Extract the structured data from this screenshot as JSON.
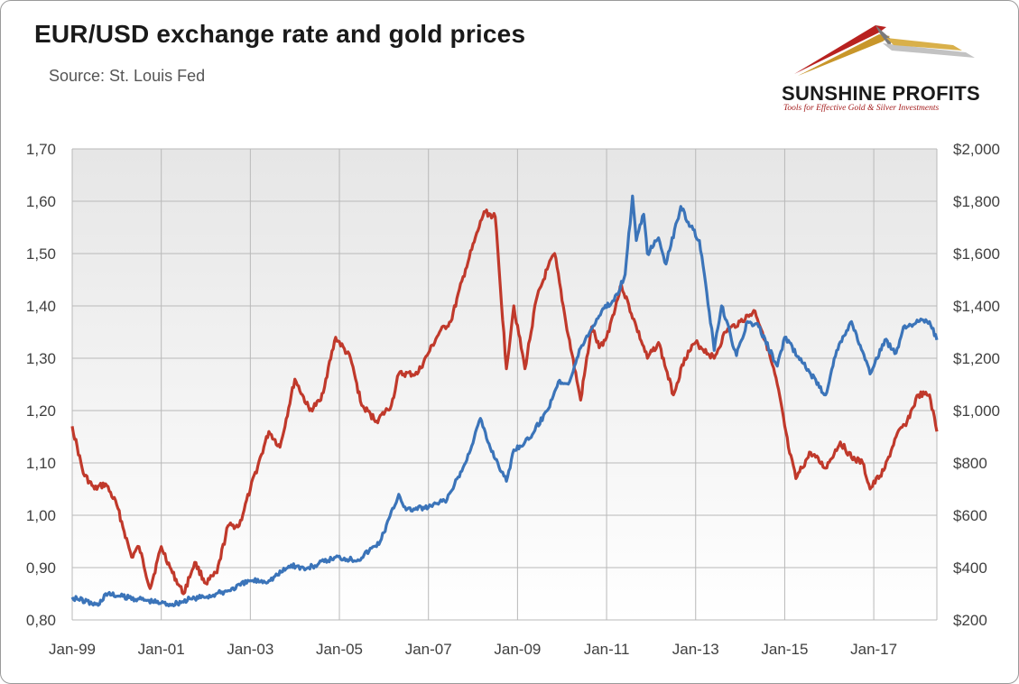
{
  "header": {
    "title": "EUR/USD exchange rate and gold prices",
    "subtitle": "Source: St. Louis Fed"
  },
  "logo": {
    "name": "SUNSHINE PROFITS",
    "tagline": "Tools for Effective Gold & Silver Investments"
  },
  "colors": {
    "eurusd": "#c0392b",
    "gold": "#3b74b9",
    "grid": "#b9b9b9",
    "plot_bg_top": "#e6e6e6",
    "plot_bg_bottom": "#ffffff"
  },
  "chart_data": {
    "type": "line",
    "title": "EUR/USD exchange rate and gold prices",
    "xlabel": "",
    "ylabel_left": "",
    "ylabel_right": "",
    "x_range": [
      "1999-01",
      "2018-06"
    ],
    "x_ticks": [
      {
        "date": "1999-01",
        "label": "Jan-99"
      },
      {
        "date": "2001-01",
        "label": "Jan-01"
      },
      {
        "date": "2003-01",
        "label": "Jan-03"
      },
      {
        "date": "2005-01",
        "label": "Jan-05"
      },
      {
        "date": "2007-01",
        "label": "Jan-07"
      },
      {
        "date": "2009-01",
        "label": "Jan-09"
      },
      {
        "date": "2011-01",
        "label": "Jan-11"
      },
      {
        "date": "2013-01",
        "label": "Jan-13"
      },
      {
        "date": "2015-01",
        "label": "Jan-15"
      },
      {
        "date": "2017-01",
        "label": "Jan-17"
      }
    ],
    "y_left": {
      "range": [
        0.8,
        1.7
      ],
      "ticks": [
        "0,80",
        "0,90",
        "1,00",
        "1,10",
        "1,20",
        "1,30",
        "1,40",
        "1,50",
        "1,60",
        "1,70"
      ]
    },
    "y_right": {
      "range": [
        200,
        2000
      ],
      "ticks": [
        "$200",
        "$400",
        "$600",
        "$800",
        "$1,000",
        "$1,200",
        "$1,400",
        "$1,600",
        "$1,800",
        "$2,000"
      ]
    },
    "grid": true,
    "legend": "none",
    "series": [
      {
        "axis": "left",
        "x": [
          "1999-01",
          "1999-04",
          "1999-07",
          "1999-10",
          "2000-01",
          "2000-05",
          "2000-07",
          "2000-10",
          "2001-01",
          "2001-04",
          "2001-07",
          "2001-10",
          "2002-01",
          "2002-04",
          "2002-07",
          "2002-10",
          "2003-01",
          "2003-06",
          "2003-09",
          "2004-01",
          "2004-05",
          "2004-08",
          "2004-12",
          "2005-04",
          "2005-07",
          "2005-11",
          "2006-03",
          "2006-05",
          "2006-10",
          "2007-01",
          "2007-04",
          "2007-07",
          "2007-11",
          "2008-04",
          "2008-07",
          "2008-10",
          "2008-12",
          "2009-03",
          "2009-06",
          "2009-09",
          "2009-11",
          "2010-02",
          "2010-06",
          "2010-09",
          "2010-11",
          "2011-01",
          "2011-05",
          "2011-09",
          "2011-12",
          "2012-03",
          "2012-07",
          "2012-10",
          "2013-01",
          "2013-06",
          "2013-09",
          "2014-01",
          "2014-05",
          "2014-08",
          "2014-11",
          "2015-02",
          "2015-04",
          "2015-08",
          "2015-12",
          "2016-04",
          "2016-07",
          "2016-10",
          "2016-12",
          "2017-04",
          "2017-07",
          "2017-10",
          "2018-01",
          "2018-04",
          "2018-06"
        ],
        "values": [
          1.17,
          1.08,
          1.05,
          1.06,
          1.02,
          0.92,
          0.94,
          0.86,
          0.94,
          0.89,
          0.85,
          0.91,
          0.87,
          0.89,
          0.98,
          0.98,
          1.05,
          1.16,
          1.13,
          1.26,
          1.2,
          1.22,
          1.34,
          1.3,
          1.21,
          1.18,
          1.21,
          1.27,
          1.27,
          1.31,
          1.35,
          1.37,
          1.47,
          1.58,
          1.57,
          1.28,
          1.4,
          1.28,
          1.41,
          1.47,
          1.5,
          1.37,
          1.22,
          1.36,
          1.32,
          1.34,
          1.44,
          1.36,
          1.3,
          1.33,
          1.23,
          1.3,
          1.33,
          1.3,
          1.35,
          1.37,
          1.39,
          1.33,
          1.25,
          1.13,
          1.07,
          1.12,
          1.09,
          1.14,
          1.11,
          1.1,
          1.05,
          1.09,
          1.15,
          1.18,
          1.23,
          1.23,
          1.16
        ]
      },
      {
        "axis": "right",
        "x": [
          "1999-01",
          "1999-08",
          "1999-10",
          "2000-02",
          "2000-07",
          "2001-01",
          "2001-04",
          "2001-09",
          "2002-03",
          "2002-07",
          "2003-01",
          "2003-06",
          "2003-12",
          "2004-04",
          "2004-12",
          "2005-06",
          "2005-12",
          "2006-05",
          "2006-07",
          "2007-01",
          "2007-06",
          "2007-11",
          "2008-03",
          "2008-05",
          "2008-10",
          "2008-12",
          "2009-04",
          "2009-09",
          "2009-12",
          "2010-03",
          "2010-06",
          "2010-12",
          "2011-03",
          "2011-06",
          "2011-08",
          "2011-09",
          "2011-11",
          "2011-12",
          "2012-03",
          "2012-05",
          "2012-09",
          "2012-11",
          "2013-02",
          "2013-04",
          "2013-06",
          "2013-08",
          "2013-12",
          "2014-03",
          "2014-06",
          "2014-11",
          "2015-01",
          "2015-06",
          "2015-12",
          "2016-03",
          "2016-07",
          "2016-12",
          "2017-04",
          "2017-07",
          "2017-09",
          "2018-01",
          "2018-04",
          "2018-06"
        ],
        "values": [
          287,
          256,
          300,
          290,
          280,
          265,
          260,
          280,
          295,
          312,
          350,
          350,
          410,
          395,
          440,
          430,
          500,
          680,
          620,
          630,
          660,
          800,
          970,
          880,
          730,
          850,
          890,
          1000,
          1110,
          1110,
          1240,
          1390,
          1420,
          1520,
          1820,
          1650,
          1750,
          1600,
          1660,
          1560,
          1780,
          1720,
          1650,
          1450,
          1230,
          1400,
          1210,
          1340,
          1320,
          1170,
          1280,
          1180,
          1060,
          1230,
          1340,
          1140,
          1270,
          1220,
          1320,
          1340,
          1340,
          1270
        ]
      }
    ]
  }
}
